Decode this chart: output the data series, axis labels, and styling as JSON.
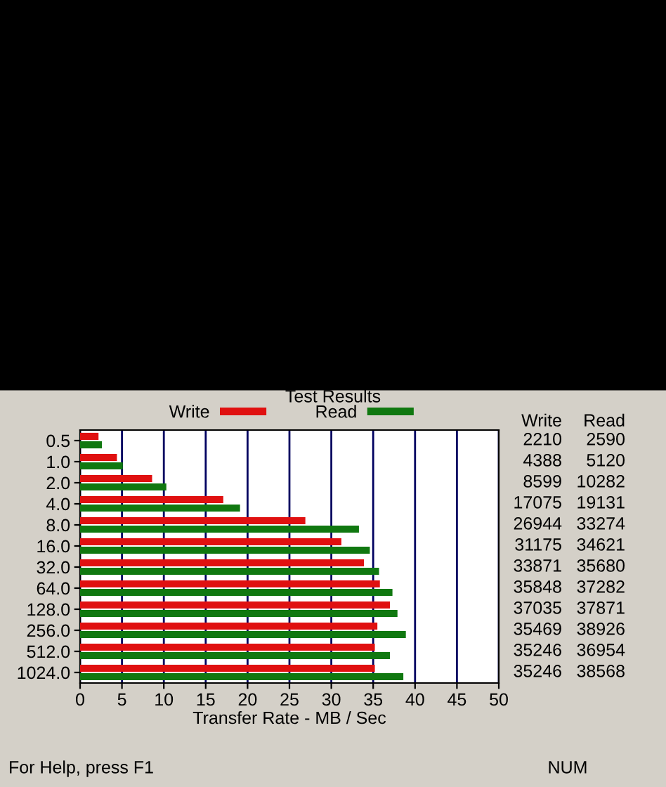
{
  "chart_data": {
    "type": "bar",
    "orientation": "horizontal",
    "title": "Test Results",
    "xlabel": "Transfer Rate - MB / Sec",
    "categories": [
      "0.5",
      "1.0",
      "2.0",
      "4.0",
      "8.0",
      "16.0",
      "32.0",
      "64.0",
      "128.0",
      "256.0",
      "512.0",
      "1024.0"
    ],
    "series": [
      {
        "name": "Write",
        "color": "#e01010",
        "values": [
          2.2,
          4.4,
          8.6,
          17.1,
          26.9,
          31.2,
          33.9,
          35.8,
          37.0,
          35.5,
          35.2,
          35.2
        ]
      },
      {
        "name": "Read",
        "color": "#107810",
        "values": [
          2.6,
          5.1,
          10.3,
          19.1,
          33.3,
          34.6,
          35.7,
          37.3,
          37.9,
          38.9,
          37.0,
          38.6
        ]
      }
    ],
    "xlim": [
      0,
      50
    ],
    "xticks": [
      0,
      5,
      10,
      15,
      20,
      25,
      30,
      35,
      40,
      45,
      50
    ],
    "grid": "x",
    "legend": "top",
    "annotations": [
      "Write",
      "Read",
      "2210",
      "2590",
      "4388",
      "5120",
      "8599",
      "10282",
      "17075",
      "19131",
      "26944",
      "33274",
      "31175",
      "34621",
      "33871",
      "35680",
      "35848",
      "37282",
      "37035",
      "37871",
      "35469",
      "38926",
      "35246",
      "36954",
      "35246",
      "38568",
      "For Help, press F1",
      "NUM"
    ]
  }
}
